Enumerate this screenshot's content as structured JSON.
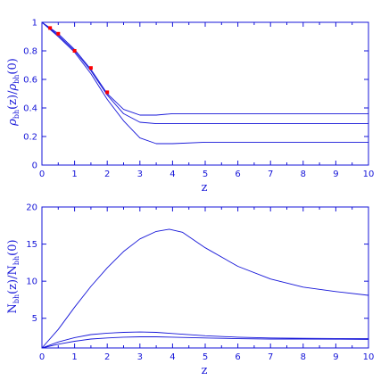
{
  "chart_data": [
    {
      "type": "line",
      "xlabel": "z",
      "ylabel": {
        "base1": "ρ",
        "sub1": "bh",
        "arg1": "(z)/",
        "base2": "ρ",
        "sub2": "bh",
        "arg2": "(0)"
      },
      "xlim": [
        0,
        10
      ],
      "ylim": [
        0,
        1
      ],
      "x_ticks": [
        0,
        0.5,
        1,
        1.5,
        2,
        2.5,
        3,
        3.5,
        4,
        4.5,
        5,
        5.5,
        6,
        6.5,
        7,
        7.5,
        8,
        8.5,
        9,
        9.5,
        10
      ],
      "x_tick_labels": [
        "0",
        "1",
        "2",
        "3",
        "4",
        "5",
        "6",
        "7",
        "8",
        "9",
        "10"
      ],
      "y_ticks": [
        0,
        0.2,
        0.4,
        0.6,
        0.8,
        1.0
      ],
      "y_tick_labels": [
        "0",
        "0.2",
        "0.4",
        "0.6",
        "0.8",
        "1"
      ],
      "grid": false,
      "series": [
        {
          "x": [
            0,
            0.5,
            1,
            1.5,
            2,
            2.5,
            3,
            3.5,
            4,
            5,
            6,
            7,
            8,
            9,
            10
          ],
          "values": [
            1,
            0.92,
            0.81,
            0.67,
            0.5,
            0.39,
            0.35,
            0.35,
            0.36,
            0.36,
            0.36,
            0.36,
            0.36,
            0.36,
            0.36
          ]
        },
        {
          "x": [
            0,
            0.5,
            1,
            1.5,
            2,
            2.5,
            3,
            3.5,
            4,
            5,
            6,
            7,
            8,
            9,
            10
          ],
          "values": [
            1,
            0.91,
            0.8,
            0.66,
            0.49,
            0.36,
            0.3,
            0.29,
            0.29,
            0.29,
            0.29,
            0.29,
            0.29,
            0.29,
            0.29
          ]
        },
        {
          "x": [
            0,
            0.5,
            1,
            1.5,
            2,
            2.5,
            3,
            3.5,
            4,
            5,
            6,
            7,
            8,
            9,
            10
          ],
          "values": [
            1,
            0.9,
            0.79,
            0.64,
            0.46,
            0.31,
            0.19,
            0.15,
            0.15,
            0.16,
            0.16,
            0.16,
            0.16,
            0.16,
            0.16
          ]
        }
      ],
      "markers": {
        "color": "#ff0000",
        "x": [
          0.25,
          0.5,
          1,
          1.5,
          2
        ],
        "values": [
          0.96,
          0.92,
          0.8,
          0.68,
          0.51
        ]
      }
    },
    {
      "type": "line",
      "xlabel": "z",
      "ylabel": {
        "base1": "N",
        "sub1": "bh",
        "arg1": "(z)/",
        "base2": "N",
        "sub2": "bh",
        "arg2": "(0)"
      },
      "xlim": [
        0,
        10
      ],
      "ylim": [
        1,
        20
      ],
      "x_ticks": [
        0,
        0.5,
        1,
        1.5,
        2,
        2.5,
        3,
        3.5,
        4,
        4.5,
        5,
        5.5,
        6,
        6.5,
        7,
        7.5,
        8,
        8.5,
        9,
        9.5,
        10
      ],
      "x_tick_labels": [
        "0",
        "1",
        "2",
        "3",
        "4",
        "5",
        "6",
        "7",
        "8",
        "9",
        "10"
      ],
      "y_ticks": [
        5,
        10,
        15,
        20
      ],
      "y_tick_labels": [
        "5",
        "10",
        "15",
        "20"
      ],
      "grid": false,
      "series": [
        {
          "x": [
            0,
            0.5,
            1,
            1.5,
            2,
            2.5,
            3,
            3.5,
            3.9,
            4.3,
            5,
            6,
            7,
            8,
            9,
            10
          ],
          "values": [
            1,
            3.5,
            6.5,
            9.3,
            11.8,
            14,
            15.7,
            16.7,
            17,
            16.6,
            14.5,
            12,
            10.3,
            9.2,
            8.6,
            8.1
          ]
        },
        {
          "x": [
            0,
            0.5,
            1,
            1.5,
            2,
            2.5,
            3,
            3.5,
            4,
            5,
            6,
            7,
            8,
            9,
            10
          ],
          "values": [
            1,
            1.8,
            2.4,
            2.8,
            3,
            3.1,
            3.15,
            3.1,
            2.95,
            2.65,
            2.45,
            2.35,
            2.3,
            2.28,
            2.25
          ]
        },
        {
          "x": [
            0,
            0.5,
            1,
            1.5,
            2,
            2.5,
            3,
            3.5,
            4,
            5,
            6,
            7,
            8,
            9,
            10
          ],
          "values": [
            1,
            1.5,
            1.9,
            2.2,
            2.35,
            2.45,
            2.5,
            2.5,
            2.45,
            2.35,
            2.25,
            2.2,
            2.2,
            2.18,
            2.15
          ]
        }
      ]
    }
  ]
}
